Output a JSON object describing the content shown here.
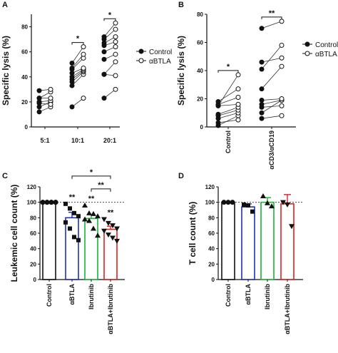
{
  "figure": {
    "panels": [
      "A",
      "B",
      "C",
      "D"
    ]
  },
  "chart_data": [
    {
      "panel": "A",
      "type": "scatter",
      "ylabel": "Specific lysis (%)",
      "ylim": [
        0,
        90
      ],
      "yticks": [
        0,
        20,
        40,
        60,
        80
      ],
      "categories": [
        "5:1",
        "10:1",
        "20:1"
      ],
      "legend": {
        "items": [
          "Control",
          "αBTLA"
        ],
        "placement": "right"
      },
      "pairs": [
        [
          [
            12,
            16
          ],
          [
            16,
            20
          ],
          [
            20,
            21
          ],
          [
            23,
            23
          ],
          [
            23,
            28
          ],
          [
            29,
            30
          ],
          [
            19,
            18
          ]
        ],
        [
          [
            16,
            23
          ],
          [
            33,
            42
          ],
          [
            36,
            44
          ],
          [
            38,
            45
          ],
          [
            40,
            46
          ],
          [
            43,
            47
          ],
          [
            46,
            55
          ],
          [
            47,
            58
          ],
          [
            51,
            64
          ]
        ],
        [
          [
            23,
            30
          ],
          [
            42,
            41
          ],
          [
            42,
            52
          ],
          [
            54,
            58
          ],
          [
            60,
            64
          ],
          [
            65,
            68
          ],
          [
            67,
            72
          ],
          [
            70,
            78
          ],
          [
            72,
            83
          ]
        ]
      ],
      "significance": [
        {
          "between": [
            1,
            1
          ],
          "label": "*"
        },
        {
          "between": [
            2,
            2
          ],
          "label": "*"
        }
      ]
    },
    {
      "panel": "B",
      "type": "scatter",
      "ylabel": "Specific lysis (%)",
      "ylim": [
        0,
        80
      ],
      "yticks": [
        0,
        20,
        40,
        60,
        80
      ],
      "categories": [
        "Control",
        "αCD3/αCD19"
      ],
      "legend": {
        "items": [
          "Control",
          "αBTLA"
        ],
        "placement": "right"
      },
      "pairs": [
        [
          [
            1,
            8
          ],
          [
            3,
            5
          ],
          [
            6,
            10
          ],
          [
            8,
            12
          ],
          [
            9,
            14
          ],
          [
            15,
            16
          ],
          [
            16,
            21
          ],
          [
            18,
            27
          ],
          [
            15,
            37
          ]
        ],
        [
          [
            6,
            8
          ],
          [
            10,
            19
          ],
          [
            14,
            15
          ],
          [
            16,
            19
          ],
          [
            19,
            20
          ],
          [
            27,
            43
          ],
          [
            41,
            58
          ],
          [
            46,
            49
          ],
          [
            70,
            75
          ]
        ]
      ],
      "significance": [
        {
          "category": 0,
          "label": "*"
        },
        {
          "category": 1,
          "label": "**"
        }
      ]
    },
    {
      "panel": "C",
      "type": "bar",
      "ylabel": "Leukemic cell count (%)",
      "ylim": [
        0,
        120
      ],
      "yticks": [
        0,
        20,
        40,
        60,
        80,
        100,
        120
      ],
      "reference_line": 100,
      "categories": [
        "Control",
        "αBTLA",
        "Ibrutinib",
        "αBTLA+Ibrutinib"
      ],
      "bar_colors": [
        "#111111",
        "#1f2fb8",
        "#1bb33a",
        "#e02020"
      ],
      "markers": [
        "circle",
        "square",
        "triangle",
        "triangle-down"
      ],
      "values": [
        100,
        80,
        79,
        65
      ],
      "errors": [
        0,
        7,
        5,
        4
      ],
      "points": [
        [
          100,
          100,
          100,
          100,
          100,
          100,
          100,
          100
        ],
        [
          98,
          92,
          86,
          82,
          74,
          66,
          55,
          51
        ],
        [
          96,
          86,
          85,
          82,
          78,
          76,
          66,
          57
        ],
        [
          78,
          73,
          70,
          66,
          63,
          58,
          54,
          50
        ]
      ],
      "bar_annotations": [
        "",
        "**",
        "**",
        "**"
      ],
      "significance": [
        {
          "between": [
            1,
            3
          ],
          "label": "*"
        },
        {
          "between": [
            2,
            3
          ],
          "label": "**"
        }
      ]
    },
    {
      "panel": "D",
      "type": "bar",
      "ylabel": "T cell count (%)",
      "ylim": [
        0,
        120
      ],
      "yticks": [
        0,
        20,
        40,
        60,
        80,
        100,
        120
      ],
      "reference_line": 100,
      "categories": [
        "Control",
        "αBTLA",
        "Ibrutinib",
        "αBTLA+Ibrutinib"
      ],
      "bar_colors": [
        "#111111",
        "#1f2fb8",
        "#1bb33a",
        "#e02020"
      ],
      "markers": [
        "circle",
        "square",
        "triangle",
        "triangle-down"
      ],
      "values": [
        100,
        94,
        100,
        98
      ],
      "errors": [
        0,
        4,
        6,
        12
      ],
      "points": [
        [
          100,
          100,
          100
        ],
        [
          97,
          96,
          88
        ],
        [
          108,
          99,
          95
        ],
        [
          100,
          97,
          69
        ]
      ],
      "bar_annotations": [
        "",
        "",
        "",
        ""
      ],
      "significance": []
    }
  ]
}
